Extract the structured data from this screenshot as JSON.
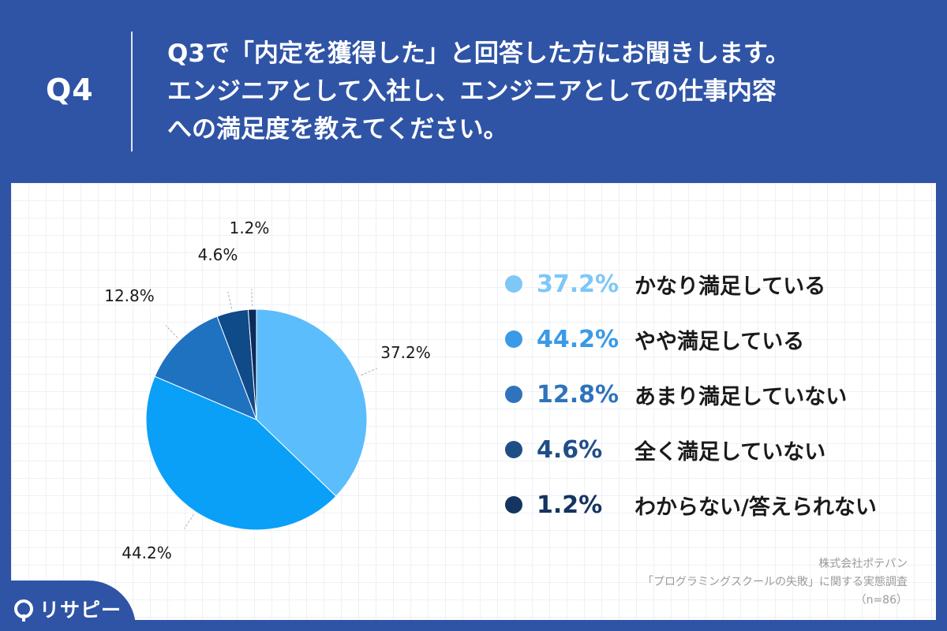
{
  "header": {
    "q_label": "Q4",
    "question_lines": [
      "Q3で「内定を獲得した」と回答した方にお聞きします。",
      "エンジニアとして入社し、エンジニアとしての仕事内容",
      "への満足度を教えてください。"
    ]
  },
  "chart_data": {
    "type": "pie",
    "categories": [
      "かなり満足している",
      "やや満足している",
      "あまり満足していない",
      "全く満足していない",
      "わからない/答えられない"
    ],
    "values": [
      37.2,
      44.2,
      12.8,
      4.6,
      1.2
    ],
    "value_labels": [
      "37.2%",
      "44.2%",
      "12.8%",
      "4.6%",
      "1.2%"
    ],
    "colors": [
      "#5bbdfc",
      "#0aa0f7",
      "#1e72c0",
      "#0f4a89",
      "#0b2b5c"
    ],
    "legend_colors": [
      "#7ec7f7",
      "#3a9ae6",
      "#2e73bb",
      "#1f4e86",
      "#143461"
    ],
    "legend_placement": "right",
    "title": "",
    "grid": false
  },
  "source": {
    "company": "株式会社ポテパン",
    "survey": "「プログラミングスクールの失敗」に関する実態調査",
    "sample": "（n=86）"
  },
  "logo": {
    "text": "リサピー"
  }
}
